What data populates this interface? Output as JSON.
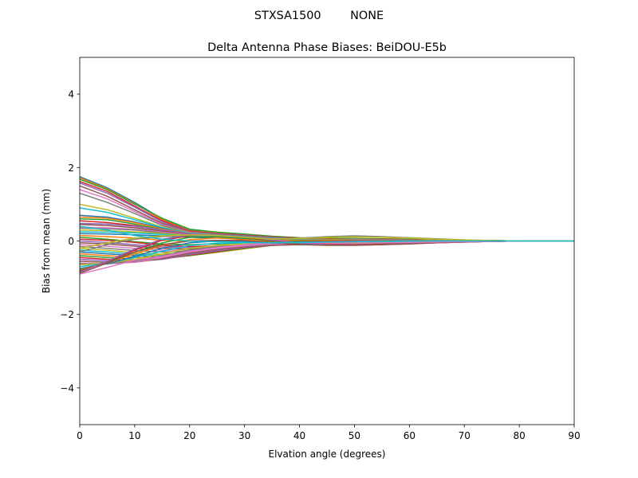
{
  "chart_data": {
    "type": "line",
    "suptitle": "STXSA1500        NONE",
    "title": "Delta Antenna Phase Biases: BeiDOU-E5b",
    "xlabel": "Elvation angle (degrees)",
    "ylabel": "Bias from mean (mm)",
    "xlim": [
      0,
      90
    ],
    "ylim": [
      -5,
      5
    ],
    "xticks": [
      0,
      10,
      20,
      30,
      40,
      50,
      60,
      70,
      80,
      90
    ],
    "yticks": [
      -4,
      -2,
      0,
      2,
      4
    ],
    "grid": false,
    "legend": "none",
    "x": [
      0,
      5,
      10,
      15,
      20,
      25,
      30,
      35,
      40,
      45,
      50,
      55,
      60,
      65,
      70,
      75,
      80,
      85,
      90
    ],
    "colors": [
      "#1f77b4",
      "#ff7f0e",
      "#2ca02c",
      "#d62728",
      "#9467bd",
      "#8c564b",
      "#e377c2",
      "#7f7f7f",
      "#bcbd22",
      "#17becf"
    ],
    "series": [
      {
        "values": [
          1.75,
          1.45,
          1.05,
          0.6,
          0.3,
          0.22,
          0.18,
          0.12,
          0.08,
          0.06,
          0.06,
          0.05,
          0.04,
          0.03,
          0.02,
          0.01,
          0.0,
          0.0,
          0.0
        ]
      },
      {
        "values": [
          1.72,
          1.42,
          1.02,
          0.58,
          0.28,
          0.21,
          0.17,
          0.11,
          0.07,
          0.05,
          0.05,
          0.04,
          0.04,
          0.03,
          0.02,
          0.01,
          0.0,
          0.0,
          0.0
        ]
      },
      {
        "values": [
          1.68,
          1.4,
          1.0,
          0.62,
          0.32,
          0.24,
          0.19,
          0.13,
          0.09,
          0.07,
          0.07,
          0.06,
          0.05,
          0.03,
          0.02,
          0.01,
          0.0,
          0.0,
          0.0
        ]
      },
      {
        "values": [
          1.62,
          1.35,
          0.95,
          0.55,
          0.27,
          0.2,
          0.16,
          0.11,
          0.08,
          0.06,
          0.05,
          0.05,
          0.04,
          0.03,
          0.02,
          0.01,
          0.0,
          0.0,
          0.0
        ]
      },
      {
        "values": [
          1.58,
          1.3,
          0.92,
          0.52,
          0.25,
          0.19,
          0.15,
          0.1,
          0.07,
          0.05,
          0.05,
          0.04,
          0.03,
          0.02,
          0.02,
          0.01,
          0.0,
          0.0,
          0.0
        ]
      },
      {
        "values": [
          1.5,
          1.22,
          0.85,
          0.48,
          0.24,
          0.18,
          0.14,
          0.1,
          0.07,
          0.06,
          0.05,
          0.04,
          0.03,
          0.02,
          0.01,
          0.01,
          0.0,
          0.0,
          0.0
        ]
      },
      {
        "values": [
          1.4,
          1.15,
          0.8,
          0.45,
          0.23,
          0.17,
          0.13,
          0.09,
          0.06,
          0.05,
          0.05,
          0.04,
          0.03,
          0.02,
          0.01,
          0.0,
          0.0,
          0.0,
          0.0
        ]
      },
      {
        "values": [
          1.3,
          1.05,
          0.75,
          0.42,
          0.22,
          0.17,
          0.13,
          0.09,
          0.06,
          0.05,
          0.04,
          0.04,
          0.03,
          0.02,
          0.01,
          0.0,
          0.0,
          0.0,
          0.0
        ]
      },
      {
        "values": [
          1.0,
          0.85,
          0.62,
          0.38,
          0.22,
          0.16,
          0.12,
          0.08,
          0.06,
          0.05,
          0.04,
          0.03,
          0.03,
          0.02,
          0.01,
          0.0,
          0.0,
          0.0,
          0.0
        ]
      },
      {
        "values": [
          0.9,
          0.78,
          0.58,
          0.36,
          0.21,
          0.16,
          0.12,
          0.08,
          0.06,
          0.05,
          0.04,
          0.03,
          0.02,
          0.02,
          0.01,
          0.0,
          0.0,
          0.0,
          0.0
        ]
      },
      {
        "values": [
          0.7,
          0.65,
          0.52,
          0.34,
          0.2,
          0.15,
          0.11,
          0.07,
          0.05,
          0.04,
          0.04,
          0.03,
          0.02,
          0.01,
          0.01,
          0.0,
          0.0,
          0.0,
          0.0
        ]
      },
      {
        "values": [
          0.65,
          0.62,
          0.5,
          0.32,
          0.2,
          0.15,
          0.11,
          0.07,
          0.05,
          0.05,
          0.04,
          0.03,
          0.02,
          0.02,
          0.01,
          0.0,
          0.0,
          0.0,
          0.0
        ]
      },
      {
        "values": [
          0.6,
          0.58,
          0.46,
          0.3,
          0.19,
          0.14,
          0.1,
          0.07,
          0.05,
          0.04,
          0.03,
          0.03,
          0.02,
          0.01,
          0.01,
          0.0,
          0.0,
          0.0,
          0.0
        ]
      },
      {
        "values": [
          0.55,
          0.5,
          0.42,
          0.28,
          0.18,
          0.14,
          0.1,
          0.06,
          0.05,
          0.04,
          0.03,
          0.02,
          0.02,
          0.01,
          0.01,
          0.0,
          0.0,
          0.0,
          0.0
        ]
      },
      {
        "values": [
          0.48,
          0.46,
          0.4,
          0.3,
          0.2,
          0.15,
          0.11,
          0.07,
          0.05,
          0.04,
          0.03,
          0.03,
          0.02,
          0.01,
          0.01,
          0.0,
          0.0,
          0.0,
          0.0
        ]
      },
      {
        "values": [
          0.45,
          0.42,
          0.36,
          0.26,
          0.17,
          0.13,
          0.09,
          0.06,
          0.04,
          0.04,
          0.03,
          0.02,
          0.02,
          0.01,
          0.0,
          0.0,
          0.0,
          0.0,
          0.0
        ]
      },
      {
        "values": [
          0.38,
          0.36,
          0.32,
          0.24,
          0.16,
          0.12,
          0.09,
          0.06,
          0.04,
          0.03,
          0.03,
          0.02,
          0.01,
          0.01,
          0.0,
          0.0,
          0.0,
          0.0,
          0.0
        ]
      },
      {
        "values": [
          0.35,
          0.33,
          0.3,
          0.22,
          0.15,
          0.11,
          0.08,
          0.05,
          0.04,
          0.03,
          0.02,
          0.02,
          0.01,
          0.01,
          0.0,
          0.0,
          0.0,
          0.0,
          0.0
        ]
      },
      {
        "values": [
          0.3,
          0.28,
          0.25,
          0.2,
          0.14,
          0.11,
          0.08,
          0.05,
          0.03,
          0.03,
          0.02,
          0.02,
          0.01,
          0.01,
          0.0,
          0.0,
          0.0,
          0.0,
          0.0
        ]
      },
      {
        "values": [
          0.25,
          0.24,
          0.22,
          0.18,
          0.13,
          0.1,
          0.07,
          0.05,
          0.03,
          0.02,
          0.02,
          0.01,
          0.01,
          0.0,
          0.0,
          0.0,
          0.0,
          0.0,
          0.0
        ]
      },
      {
        "values": [
          0.2,
          0.19,
          0.17,
          0.14,
          0.1,
          0.08,
          0.06,
          0.04,
          0.02,
          0.02,
          0.01,
          0.01,
          0.01,
          0.0,
          0.0,
          0.0,
          0.0,
          0.0,
          0.0
        ]
      },
      {
        "values": [
          0.15,
          0.12,
          0.08,
          0.02,
          0.0,
          0.0,
          0.02,
          0.02,
          0.02,
          0.02,
          0.01,
          0.01,
          0.01,
          0.0,
          0.0,
          0.0,
          0.0,
          0.0,
          0.0
        ]
      },
      {
        "values": [
          0.1,
          0.05,
          -0.02,
          -0.08,
          -0.1,
          -0.08,
          -0.05,
          -0.02,
          0.0,
          0.0,
          0.0,
          0.0,
          0.0,
          0.0,
          0.0,
          0.0,
          0.0,
          0.0,
          0.0
        ]
      },
      {
        "values": [
          0.05,
          0.02,
          -0.04,
          -0.12,
          -0.15,
          -0.13,
          -0.1,
          -0.06,
          -0.02,
          -0.01,
          0.0,
          0.0,
          0.0,
          0.0,
          0.0,
          0.0,
          0.0,
          0.0,
          0.0
        ]
      },
      {
        "values": [
          0.0,
          -0.04,
          -0.1,
          -0.16,
          -0.18,
          -0.15,
          -0.11,
          -0.07,
          -0.03,
          -0.02,
          -0.01,
          0.0,
          0.0,
          0.0,
          0.0,
          0.0,
          0.0,
          0.0,
          0.0
        ]
      },
      {
        "values": [
          -0.05,
          -0.08,
          -0.14,
          -0.2,
          -0.22,
          -0.18,
          -0.13,
          -0.08,
          -0.04,
          -0.03,
          -0.02,
          -0.01,
          0.0,
          0.0,
          0.0,
          0.0,
          0.0,
          0.0,
          0.0
        ]
      },
      {
        "values": [
          -0.1,
          -0.14,
          -0.2,
          -0.25,
          -0.25,
          -0.2,
          -0.14,
          -0.08,
          -0.05,
          -0.04,
          -0.03,
          -0.02,
          -0.01,
          0.0,
          0.0,
          0.0,
          0.0,
          0.0,
          0.0
        ]
      },
      {
        "values": [
          -0.15,
          -0.2,
          -0.26,
          -0.3,
          -0.28,
          -0.22,
          -0.15,
          -0.09,
          -0.06,
          -0.05,
          -0.04,
          -0.03,
          -0.02,
          -0.01,
          0.0,
          0.0,
          0.0,
          0.0,
          0.0
        ]
      },
      {
        "values": [
          -0.2,
          -0.25,
          -0.32,
          -0.36,
          -0.32,
          -0.25,
          -0.17,
          -0.1,
          -0.07,
          -0.06,
          -0.05,
          -0.04,
          -0.03,
          -0.02,
          -0.01,
          0.0,
          0.0,
          0.0,
          0.0
        ]
      },
      {
        "values": [
          -0.25,
          -0.3,
          -0.36,
          -0.4,
          -0.36,
          -0.28,
          -0.19,
          -0.11,
          -0.08,
          -0.07,
          -0.06,
          -0.05,
          -0.03,
          -0.02,
          -0.01,
          0.0,
          0.0,
          0.0,
          0.0
        ]
      },
      {
        "values": [
          -0.3,
          -0.35,
          -0.4,
          -0.44,
          -0.38,
          -0.3,
          -0.2,
          -0.12,
          -0.09,
          -0.08,
          -0.07,
          -0.05,
          -0.04,
          -0.02,
          -0.01,
          0.0,
          0.0,
          0.0,
          0.0
        ]
      },
      {
        "values": [
          -0.35,
          -0.4,
          -0.45,
          -0.46,
          -0.4,
          -0.31,
          -0.21,
          -0.12,
          -0.09,
          -0.08,
          -0.07,
          -0.06,
          -0.04,
          -0.03,
          -0.01,
          0.0,
          0.0,
          0.0,
          0.0
        ]
      },
      {
        "values": [
          -0.4,
          -0.45,
          -0.5,
          -0.48,
          -0.4,
          -0.3,
          -0.2,
          -0.12,
          -0.1,
          -0.09,
          -0.08,
          -0.06,
          -0.05,
          -0.03,
          -0.01,
          0.0,
          0.0,
          0.0,
          0.0
        ]
      },
      {
        "values": [
          -0.45,
          -0.5,
          -0.54,
          -0.5,
          -0.38,
          -0.28,
          -0.18,
          -0.11,
          -0.1,
          -0.09,
          -0.08,
          -0.07,
          -0.05,
          -0.03,
          -0.02,
          0.0,
          0.0,
          0.0,
          0.0
        ]
      },
      {
        "values": [
          -0.5,
          -0.54,
          -0.56,
          -0.5,
          -0.36,
          -0.26,
          -0.17,
          -0.1,
          -0.09,
          -0.09,
          -0.08,
          -0.07,
          -0.05,
          -0.03,
          -0.02,
          0.0,
          0.0,
          0.0,
          0.0
        ]
      },
      {
        "values": [
          -0.55,
          -0.58,
          -0.58,
          -0.48,
          -0.33,
          -0.23,
          -0.15,
          -0.09,
          -0.08,
          -0.08,
          -0.08,
          -0.07,
          -0.05,
          -0.03,
          -0.02,
          0.0,
          0.0,
          0.0,
          0.0
        ]
      },
      {
        "values": [
          -0.6,
          -0.62,
          -0.58,
          -0.45,
          -0.3,
          -0.2,
          -0.13,
          -0.08,
          -0.07,
          -0.08,
          -0.08,
          -0.06,
          -0.05,
          -0.03,
          -0.02,
          -0.01,
          0.0,
          0.0,
          0.0
        ]
      },
      {
        "values": [
          -0.62,
          -0.62,
          -0.55,
          -0.4,
          -0.25,
          -0.16,
          -0.1,
          -0.06,
          -0.06,
          -0.07,
          -0.07,
          -0.06,
          -0.04,
          -0.03,
          -0.02,
          -0.01,
          0.0,
          0.0,
          0.0
        ]
      },
      {
        "values": [
          -0.65,
          -0.6,
          -0.5,
          -0.35,
          -0.2,
          -0.12,
          -0.08,
          -0.05,
          -0.05,
          -0.06,
          -0.07,
          -0.06,
          -0.04,
          -0.03,
          -0.02,
          -0.01,
          0.0,
          0.0,
          0.0
        ]
      },
      {
        "values": [
          -0.7,
          -0.6,
          -0.45,
          -0.28,
          -0.12,
          -0.06,
          -0.05,
          -0.05,
          -0.06,
          -0.07,
          -0.07,
          -0.06,
          -0.05,
          -0.03,
          -0.02,
          -0.01,
          0.0,
          0.0,
          0.0
        ]
      },
      {
        "values": [
          -0.75,
          -0.62,
          -0.42,
          -0.2,
          -0.05,
          0.0,
          -0.02,
          -0.05,
          -0.07,
          -0.08,
          -0.08,
          -0.07,
          -0.05,
          -0.04,
          -0.02,
          -0.01,
          0.0,
          0.0,
          0.0
        ]
      },
      {
        "values": [
          -0.78,
          -0.6,
          -0.35,
          -0.12,
          0.04,
          0.08,
          0.04,
          -0.02,
          -0.06,
          -0.08,
          -0.09,
          -0.07,
          -0.06,
          -0.04,
          -0.02,
          -0.01,
          0.0,
          0.0,
          0.0
        ]
      },
      {
        "values": [
          -0.8,
          -0.58,
          -0.3,
          -0.05,
          0.1,
          0.12,
          0.08,
          0.0,
          -0.06,
          -0.09,
          -0.1,
          -0.08,
          -0.06,
          -0.04,
          -0.02,
          -0.01,
          0.0,
          0.0,
          0.0
        ]
      },
      {
        "values": [
          -0.82,
          -0.56,
          -0.25,
          0.02,
          0.14,
          0.15,
          0.1,
          0.02,
          -0.05,
          -0.09,
          -0.1,
          -0.09,
          -0.07,
          -0.05,
          -0.03,
          -0.01,
          0.0,
          0.0,
          0.0
        ]
      },
      {
        "values": [
          -0.85,
          -0.55,
          -0.22,
          0.05,
          0.16,
          0.16,
          0.11,
          0.03,
          -0.05,
          -0.1,
          -0.11,
          -0.1,
          -0.07,
          -0.05,
          -0.03,
          -0.01,
          0.0,
          0.0,
          0.0
        ]
      },
      {
        "values": [
          -0.88,
          -0.6,
          -0.3,
          -0.1,
          0.0,
          0.02,
          0.01,
          -0.04,
          -0.1,
          -0.12,
          -0.12,
          -0.1,
          -0.08,
          -0.05,
          -0.03,
          -0.01,
          0.0,
          0.0,
          0.0
        ]
      },
      {
        "values": [
          -0.9,
          -0.72,
          -0.52,
          -0.42,
          -0.28,
          -0.18,
          -0.1,
          -0.05,
          -0.04,
          -0.05,
          -0.06,
          -0.05,
          -0.04,
          -0.03,
          -0.02,
          -0.01,
          0.0,
          0.0,
          0.0
        ]
      },
      {
        "values": [
          -0.3,
          -0.1,
          0.05,
          0.12,
          0.15,
          0.14,
          0.1,
          0.05,
          0.08,
          0.12,
          0.14,
          0.12,
          0.09,
          0.06,
          0.03,
          0.01,
          0.0,
          0.0,
          0.0
        ]
      },
      {
        "values": [
          -0.2,
          -0.05,
          0.08,
          0.14,
          0.17,
          0.15,
          0.1,
          0.05,
          0.07,
          0.1,
          0.11,
          0.1,
          0.08,
          0.05,
          0.03,
          0.01,
          0.0,
          0.0,
          0.0
        ]
      },
      {
        "values": [
          0.4,
          0.3,
          0.15,
          0.05,
          0.0,
          -0.02,
          -0.04,
          -0.05,
          -0.04,
          -0.03,
          -0.02,
          -0.01,
          0.0,
          0.0,
          0.0,
          0.0,
          0.0,
          0.0,
          0.0
        ]
      }
    ]
  }
}
